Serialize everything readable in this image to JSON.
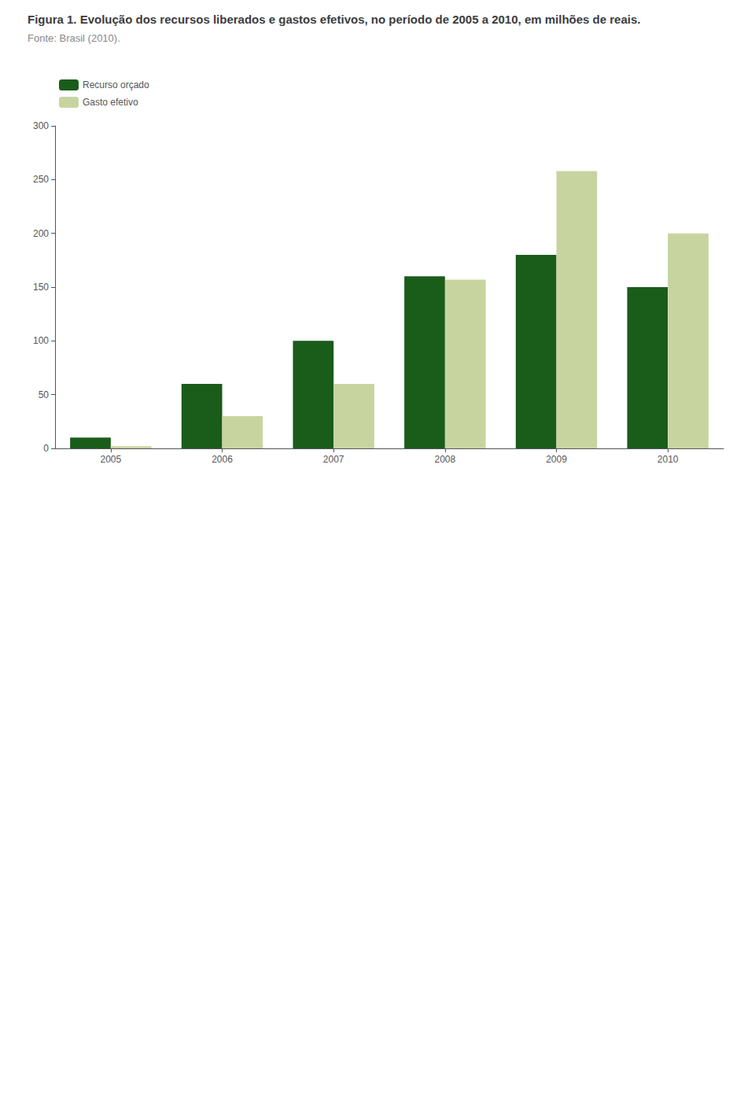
{
  "chart_data": {
    "type": "bar",
    "title": "Figura 1. Evolução dos recursos liberados e gastos efetivos, no período de 2005 a 2010, em milhões de reais.",
    "subtitle": "Fonte: Brasil (2010).",
    "categories": [
      "2005",
      "2006",
      "2007",
      "2008",
      "2009",
      "2010"
    ],
    "series": [
      {
        "name": "Recurso orçado",
        "color": "#1a5c1a",
        "values": [
          10,
          60,
          100,
          160,
          180,
          150
        ]
      },
      {
        "name": "Gasto efetivo",
        "color": "#c8d4a0",
        "values": [
          2,
          30,
          60,
          157,
          258,
          200
        ]
      }
    ],
    "ylim": [
      0,
      300
    ],
    "yticks": [
      0,
      50,
      100,
      150,
      200,
      250,
      300
    ],
    "grid": false,
    "legend": "upper left"
  }
}
